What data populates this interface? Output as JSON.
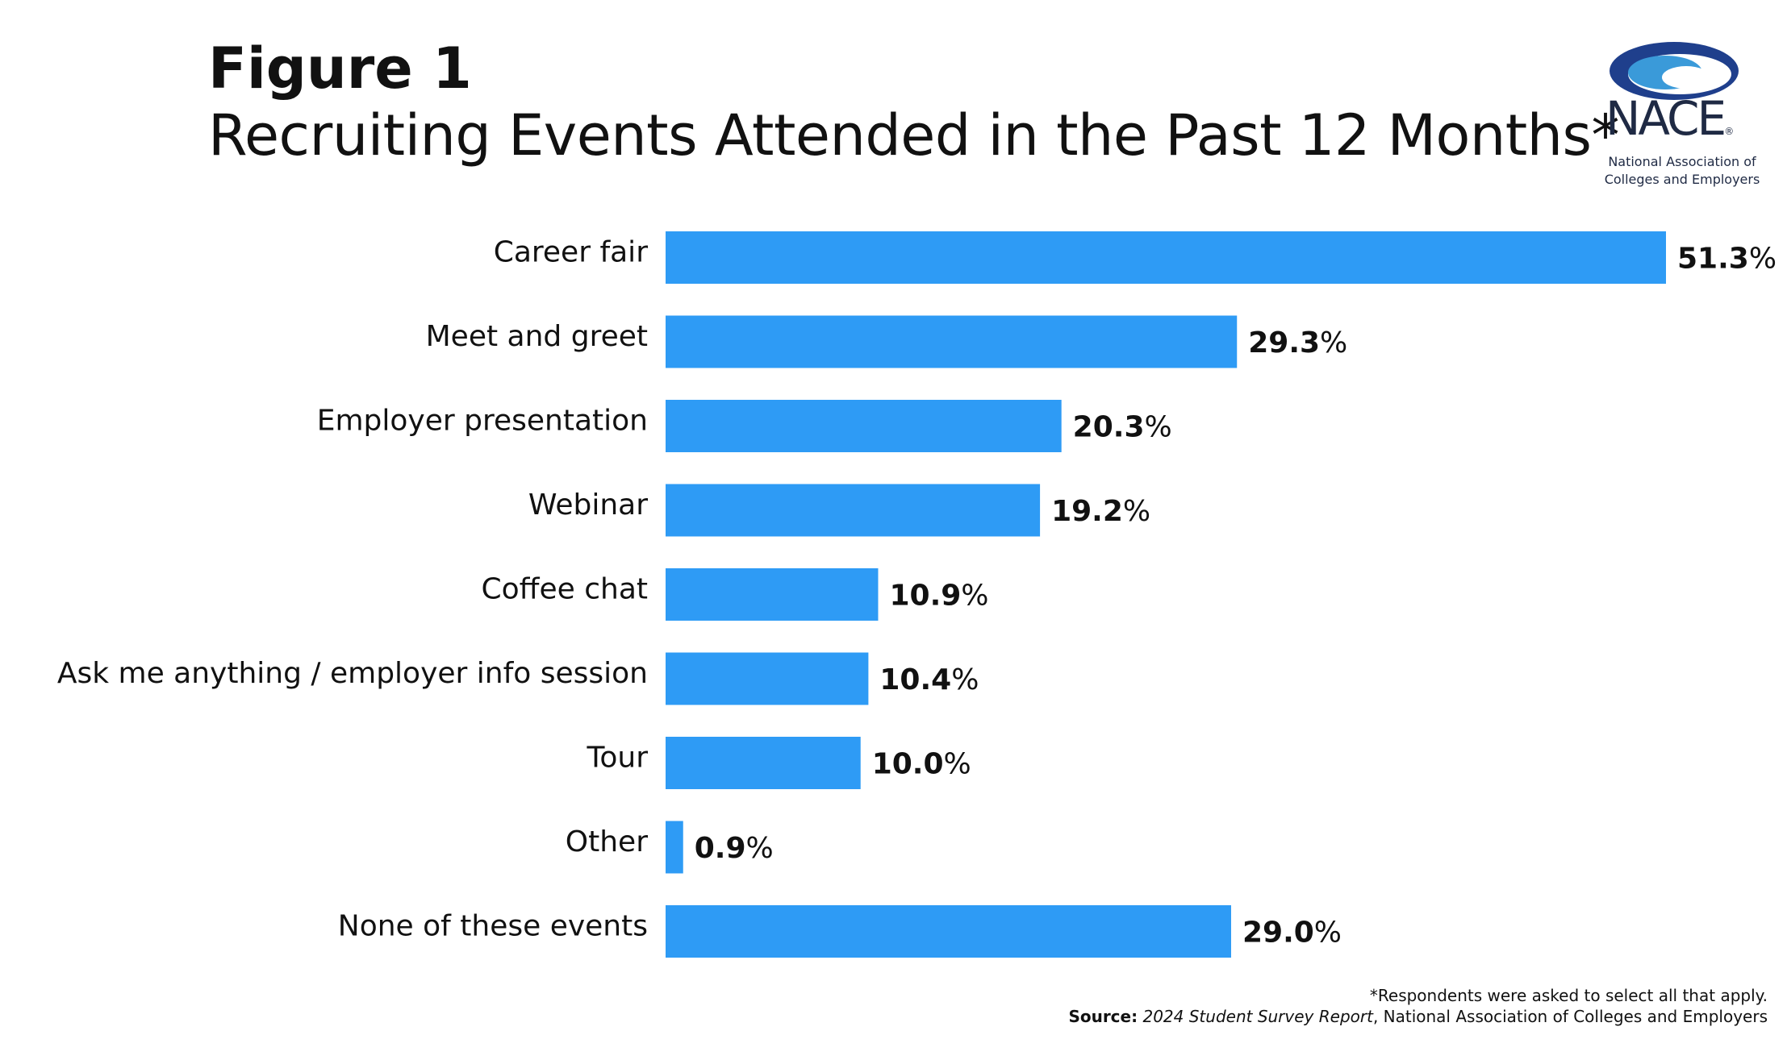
{
  "figure_label": "Figure 1",
  "title": "Recruiting Events Attended in the Past 12 Months*",
  "logo": {
    "name": "NACE",
    "registered": "®",
    "subtitle_line1": "National Association of",
    "subtitle_line2": "Colleges and Employers",
    "icon": "swoosh-logo-icon",
    "colors": {
      "dark": "#1f3f8c",
      "light": "#3a9ad9"
    }
  },
  "chart_data": {
    "type": "bar",
    "orientation": "horizontal",
    "categories": [
      "Career fair",
      "Meet and greet",
      "Employer presentation",
      "Webinar",
      "Coffee chat",
      "Ask me anything / employer info session",
      "Tour",
      "Other",
      "None of these events"
    ],
    "values": [
      51.3,
      29.3,
      20.3,
      19.2,
      10.9,
      10.4,
      10.0,
      0.9,
      29.0
    ],
    "value_labels": [
      "51.3",
      "29.3",
      "20.3",
      "19.2",
      "10.9",
      "10.4",
      "10.0",
      "0.9",
      "29.0"
    ],
    "value_suffix": "%",
    "xlim": [
      0,
      51.3
    ],
    "grid": false,
    "legend": "none",
    "bar_color": "#2e9bf5"
  },
  "footnote": {
    "note": "*Respondents were asked to select all that apply.",
    "source_label": "Source:",
    "source_title": "2024 Student Survey Report",
    "source_rest": ", National Association of Colleges and Employers"
  }
}
